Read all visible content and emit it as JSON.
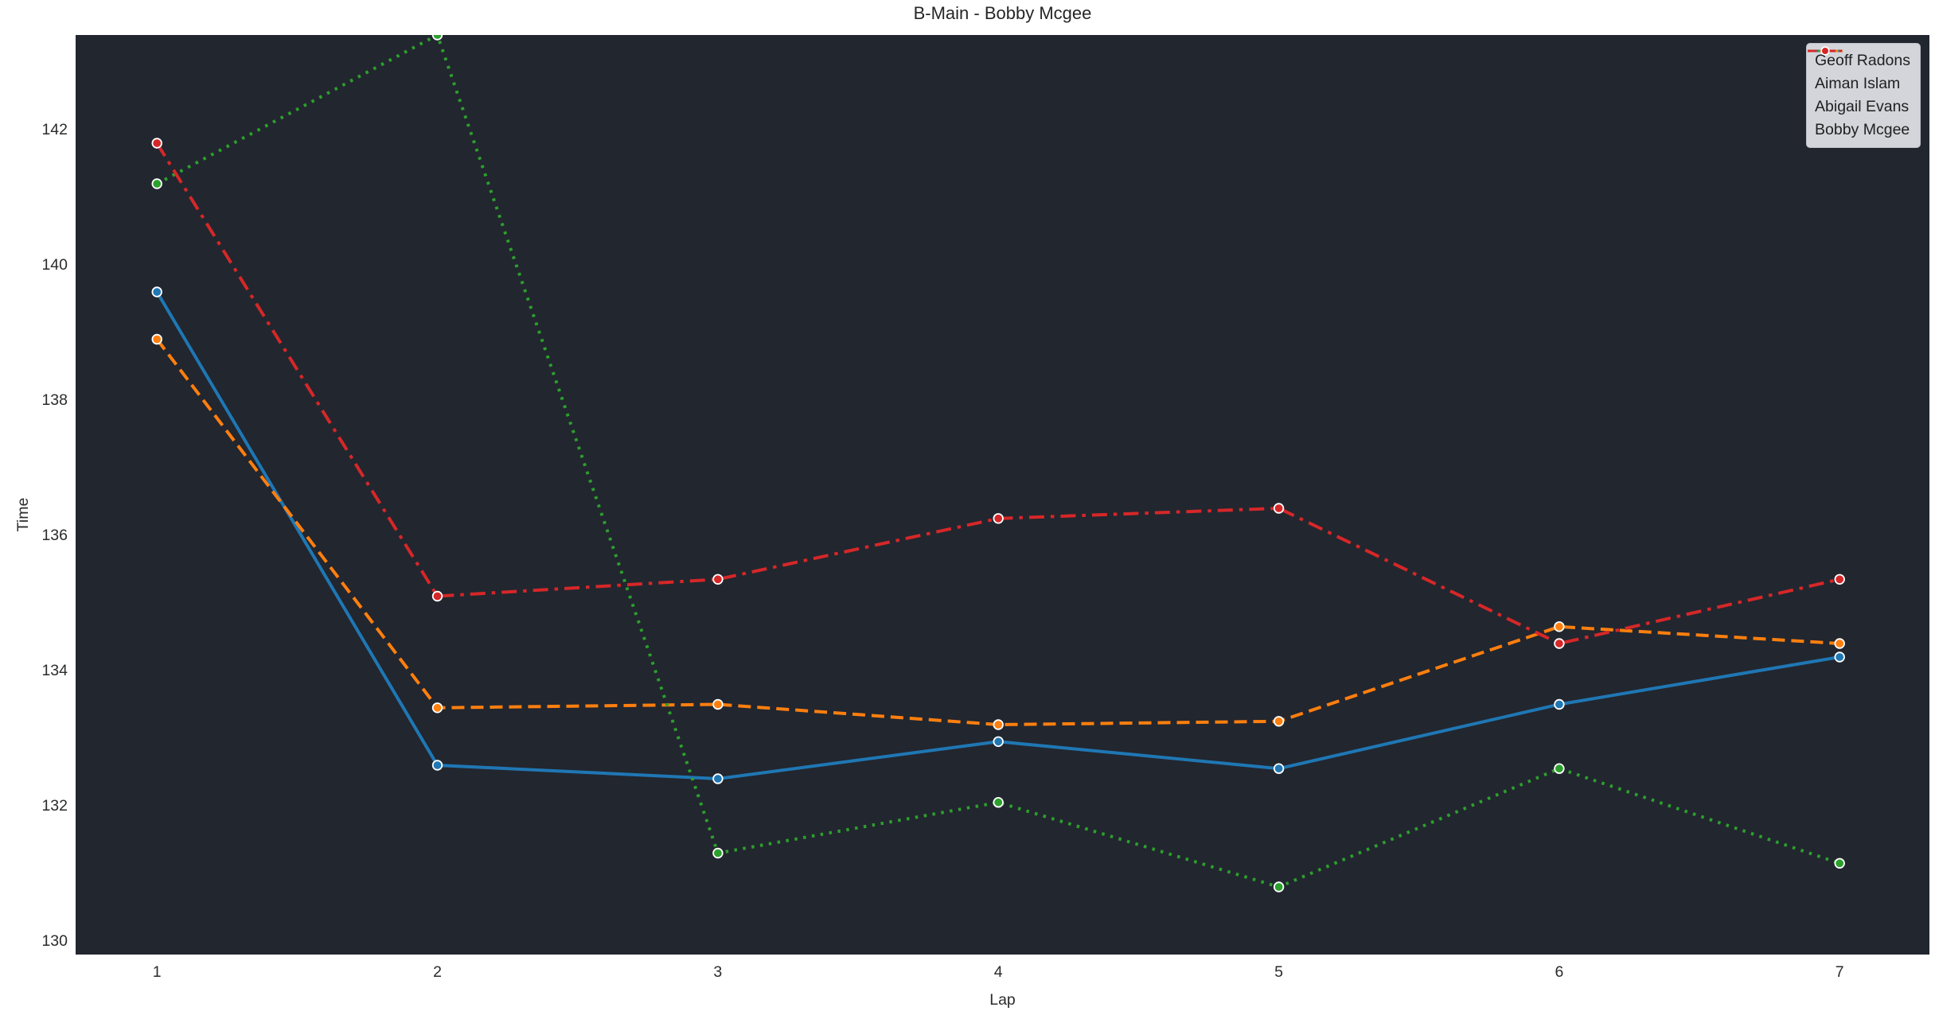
{
  "colors": {
    "page_bg": "#ffffff",
    "plot_bg": "#22262f",
    "text": "#262626",
    "legend_bg": "#d3d5da",
    "legend_border": "#bfc1c6",
    "marker_edge": "#ffffff"
  },
  "chart_data": {
    "type": "line",
    "title": "B-Main - Bobby Mcgee",
    "xlabel": "Lap",
    "ylabel": "Time",
    "x": [
      1,
      2,
      3,
      4,
      5,
      6,
      7
    ],
    "xticks": [
      1,
      2,
      3,
      4,
      5,
      6,
      7
    ],
    "yticks": [
      130,
      132,
      134,
      136,
      138,
      140,
      142
    ],
    "xlim": [
      0.71,
      7.32
    ],
    "ylim": [
      129.8,
      143.4
    ],
    "grid": false,
    "legend_position": "upper right",
    "marker": "circle",
    "series": [
      {
        "name": "Geoff Radons",
        "color": "#1f77b4",
        "line_style": "solid",
        "values": [
          139.6,
          132.6,
          132.4,
          132.95,
          132.55,
          133.5,
          134.2
        ]
      },
      {
        "name": "Aiman Islam",
        "color": "#ff7f0e",
        "line_style": "dashed",
        "values": [
          138.9,
          133.45,
          133.5,
          133.2,
          133.25,
          134.65,
          134.4
        ]
      },
      {
        "name": "Abigail Evans",
        "color": "#2ca02c",
        "line_style": "dotted",
        "values": [
          141.2,
          143.4,
          131.3,
          132.05,
          130.8,
          132.55,
          131.15
        ]
      },
      {
        "name": "Bobby Mcgee",
        "color": "#d62728",
        "line_style": "dashdot",
        "values": [
          141.8,
          135.1,
          135.35,
          136.25,
          136.4,
          134.4,
          135.35
        ]
      }
    ]
  }
}
